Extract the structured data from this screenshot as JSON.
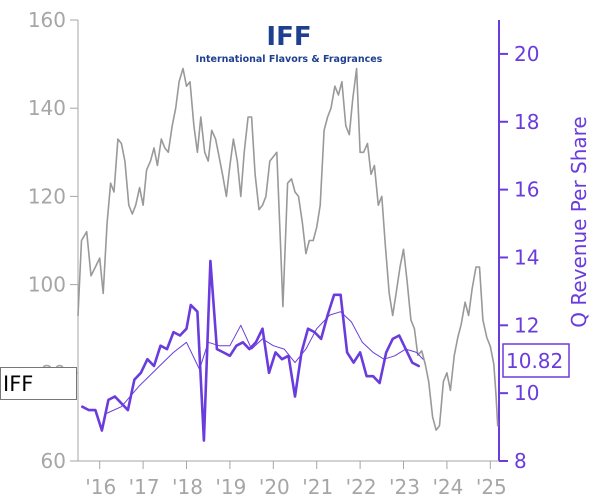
{
  "chart_data": {
    "type": "line",
    "logo": {
      "mark": "IFF",
      "name": "International Flavors & Fragrances",
      "color": "#1f3f8f"
    },
    "ticker": "IFF",
    "y_left": {
      "ticks": [
        60,
        80,
        100,
        120,
        140,
        160
      ],
      "lim": [
        60,
        160
      ],
      "color": "#a6a6a6"
    },
    "y_right": {
      "label": "Q Revenue Per Share",
      "ticks": [
        8,
        10,
        12,
        14,
        16,
        18,
        20
      ],
      "lim": [
        8,
        21
      ],
      "color": "#6a3cdc"
    },
    "x_ticks": [
      {
        "label": "'16",
        "x": 2016
      },
      {
        "label": "'17",
        "x": 2017
      },
      {
        "label": "'18",
        "x": 2018
      },
      {
        "label": "'19",
        "x": 2019
      },
      {
        "label": "'20",
        "x": 2020
      },
      {
        "label": "'21",
        "x": 2021
      },
      {
        "label": "'22",
        "x": 2022
      },
      {
        "label": "'23",
        "x": 2023
      },
      {
        "label": "'24",
        "x": 2024
      },
      {
        "label": "'25",
        "x": 2025
      }
    ],
    "xlim": [
      2015.5,
      2025.2
    ],
    "last_value_label": "10.82",
    "series": [
      {
        "role": "price",
        "axis": "left",
        "color": "#999999",
        "points": [
          [
            2015.5,
            93
          ],
          [
            2015.58,
            110
          ],
          [
            2015.7,
            112
          ],
          [
            2015.8,
            102
          ],
          [
            2015.9,
            104
          ],
          [
            2016.0,
            106
          ],
          [
            2016.08,
            98
          ],
          [
            2016.17,
            114
          ],
          [
            2016.25,
            123
          ],
          [
            2016.33,
            121
          ],
          [
            2016.42,
            133
          ],
          [
            2016.5,
            132
          ],
          [
            2016.58,
            128
          ],
          [
            2016.67,
            118
          ],
          [
            2016.75,
            116
          ],
          [
            2016.83,
            118
          ],
          [
            2016.92,
            122
          ],
          [
            2017.0,
            118
          ],
          [
            2017.08,
            126
          ],
          [
            2017.17,
            128
          ],
          [
            2017.25,
            131
          ],
          [
            2017.33,
            127
          ],
          [
            2017.42,
            133
          ],
          [
            2017.5,
            131
          ],
          [
            2017.58,
            130
          ],
          [
            2017.67,
            136
          ],
          [
            2017.75,
            140
          ],
          [
            2017.83,
            146
          ],
          [
            2017.92,
            149
          ],
          [
            2018.0,
            145
          ],
          [
            2018.08,
            146
          ],
          [
            2018.17,
            136
          ],
          [
            2018.25,
            130
          ],
          [
            2018.33,
            138
          ],
          [
            2018.42,
            130
          ],
          [
            2018.5,
            128
          ],
          [
            2018.58,
            135
          ],
          [
            2018.67,
            133
          ],
          [
            2018.75,
            129
          ],
          [
            2018.83,
            125
          ],
          [
            2018.92,
            120
          ],
          [
            2019.0,
            127
          ],
          [
            2019.08,
            133
          ],
          [
            2019.17,
            128
          ],
          [
            2019.25,
            120
          ],
          [
            2019.33,
            130
          ],
          [
            2019.42,
            138
          ],
          [
            2019.5,
            138
          ],
          [
            2019.58,
            125
          ],
          [
            2019.67,
            117
          ],
          [
            2019.75,
            118
          ],
          [
            2019.83,
            120
          ],
          [
            2019.92,
            128
          ],
          [
            2020.0,
            129
          ],
          [
            2020.08,
            130
          ],
          [
            2020.17,
            108
          ],
          [
            2020.22,
            95
          ],
          [
            2020.33,
            123
          ],
          [
            2020.42,
            124
          ],
          [
            2020.5,
            121
          ],
          [
            2020.58,
            120
          ],
          [
            2020.67,
            114
          ],
          [
            2020.75,
            107
          ],
          [
            2020.83,
            110
          ],
          [
            2020.92,
            110
          ],
          [
            2021.0,
            113
          ],
          [
            2021.08,
            118
          ],
          [
            2021.17,
            135
          ],
          [
            2021.25,
            138
          ],
          [
            2021.33,
            140
          ],
          [
            2021.42,
            145
          ],
          [
            2021.5,
            143
          ],
          [
            2021.58,
            146
          ],
          [
            2021.67,
            136
          ],
          [
            2021.75,
            134
          ],
          [
            2021.83,
            142
          ],
          [
            2021.92,
            149
          ],
          [
            2022.0,
            130
          ],
          [
            2022.08,
            130
          ],
          [
            2022.17,
            132
          ],
          [
            2022.25,
            125
          ],
          [
            2022.33,
            127
          ],
          [
            2022.42,
            118
          ],
          [
            2022.5,
            120
          ],
          [
            2022.58,
            109
          ],
          [
            2022.67,
            98
          ],
          [
            2022.75,
            93
          ],
          [
            2022.83,
            98
          ],
          [
            2022.92,
            104
          ],
          [
            2023.0,
            108
          ],
          [
            2023.08,
            101
          ],
          [
            2023.17,
            92
          ],
          [
            2023.25,
            90
          ],
          [
            2023.33,
            84
          ],
          [
            2023.42,
            85
          ],
          [
            2023.5,
            82
          ],
          [
            2023.58,
            78
          ],
          [
            2023.67,
            70
          ],
          [
            2023.75,
            67
          ],
          [
            2023.83,
            68
          ],
          [
            2023.92,
            78
          ],
          [
            2024.0,
            80
          ],
          [
            2024.08,
            76
          ],
          [
            2024.17,
            84
          ],
          [
            2024.25,
            88
          ],
          [
            2024.33,
            91
          ],
          [
            2024.42,
            96
          ],
          [
            2024.5,
            93
          ],
          [
            2024.58,
            99
          ],
          [
            2024.67,
            104
          ],
          [
            2024.75,
            104
          ],
          [
            2024.83,
            92
          ],
          [
            2024.92,
            88
          ],
          [
            2025.0,
            86
          ],
          [
            2025.08,
            82
          ],
          [
            2025.13,
            75
          ],
          [
            2025.17,
            68
          ]
        ]
      },
      {
        "role": "revenue",
        "axis": "right",
        "color": "#6a3cdc",
        "width": 2.6,
        "points": [
          [
            2015.6,
            9.6
          ],
          [
            2015.75,
            9.5
          ],
          [
            2015.9,
            9.5
          ],
          [
            2016.05,
            8.9
          ],
          [
            2016.2,
            9.8
          ],
          [
            2016.35,
            9.9
          ],
          [
            2016.5,
            9.7
          ],
          [
            2016.65,
            9.5
          ],
          [
            2016.8,
            10.4
          ],
          [
            2016.95,
            10.6
          ],
          [
            2017.1,
            11.0
          ],
          [
            2017.25,
            10.8
          ],
          [
            2017.4,
            11.4
          ],
          [
            2017.55,
            11.3
          ],
          [
            2017.7,
            11.8
          ],
          [
            2017.85,
            11.7
          ],
          [
            2018.0,
            11.9
          ],
          [
            2018.1,
            12.6
          ],
          [
            2018.25,
            12.4
          ],
          [
            2018.4,
            8.6
          ],
          [
            2018.55,
            13.9
          ],
          [
            2018.7,
            11.3
          ],
          [
            2018.85,
            11.2
          ],
          [
            2019.0,
            11.1
          ],
          [
            2019.15,
            11.4
          ],
          [
            2019.3,
            11.5
          ],
          [
            2019.45,
            11.3
          ],
          [
            2019.6,
            11.5
          ],
          [
            2019.75,
            11.9
          ],
          [
            2019.9,
            10.6
          ],
          [
            2020.05,
            11.2
          ],
          [
            2020.2,
            11.0
          ],
          [
            2020.35,
            11.1
          ],
          [
            2020.5,
            9.9
          ],
          [
            2020.65,
            11.2
          ],
          [
            2020.8,
            11.9
          ],
          [
            2020.95,
            11.8
          ],
          [
            2021.1,
            11.6
          ],
          [
            2021.25,
            12.3
          ],
          [
            2021.4,
            12.9
          ],
          [
            2021.55,
            12.9
          ],
          [
            2021.7,
            11.2
          ],
          [
            2021.85,
            10.9
          ],
          [
            2022.0,
            11.2
          ],
          [
            2022.15,
            10.5
          ],
          [
            2022.3,
            10.5
          ],
          [
            2022.45,
            10.3
          ],
          [
            2022.6,
            11.2
          ],
          [
            2022.75,
            11.6
          ],
          [
            2022.9,
            11.7
          ],
          [
            2023.05,
            11.3
          ],
          [
            2023.2,
            10.9
          ],
          [
            2023.35,
            10.8
          ]
        ]
      },
      {
        "role": "revenue-average",
        "axis": "right",
        "color": "#6a3cdc",
        "width": 1,
        "points": [
          [
            2016.15,
            9.4
          ],
          [
            2016.5,
            9.6
          ],
          [
            2016.9,
            10.2
          ],
          [
            2017.3,
            10.7
          ],
          [
            2017.7,
            11.2
          ],
          [
            2018.0,
            11.5
          ],
          [
            2018.3,
            10.7
          ],
          [
            2018.5,
            11.5
          ],
          [
            2018.75,
            11.4
          ],
          [
            2019.0,
            11.4
          ],
          [
            2019.25,
            12.0
          ],
          [
            2019.5,
            11.3
          ],
          [
            2019.75,
            11.6
          ],
          [
            2020.0,
            11.4
          ],
          [
            2020.25,
            11.3
          ],
          [
            2020.5,
            10.9
          ],
          [
            2020.75,
            11.3
          ],
          [
            2021.0,
            11.9
          ],
          [
            2021.3,
            12.3
          ],
          [
            2021.55,
            12.4
          ],
          [
            2021.8,
            12.1
          ],
          [
            2022.05,
            11.5
          ],
          [
            2022.3,
            11.2
          ],
          [
            2022.55,
            11.0
          ],
          [
            2022.8,
            11.1
          ],
          [
            2023.05,
            11.3
          ],
          [
            2023.3,
            11.2
          ],
          [
            2023.45,
            11.0
          ]
        ]
      }
    ]
  }
}
